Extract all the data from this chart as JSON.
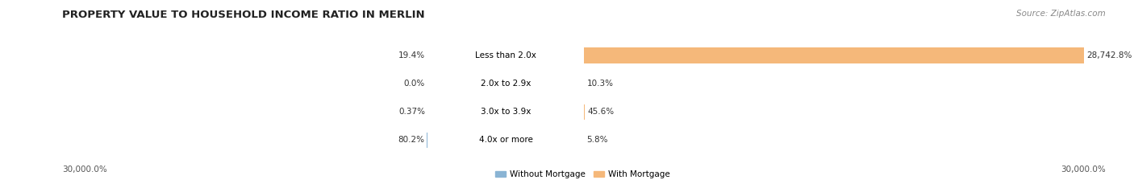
{
  "title": "PROPERTY VALUE TO HOUSEHOLD INCOME RATIO IN MERLIN",
  "source": "Source: ZipAtlas.com",
  "categories": [
    "Less than 2.0x",
    "2.0x to 2.9x",
    "3.0x to 3.9x",
    "4.0x or more"
  ],
  "without_mortgage": [
    19.4,
    0.0,
    0.37,
    80.2
  ],
  "with_mortgage": [
    28742.8,
    10.3,
    45.6,
    5.8
  ],
  "without_mortgage_labels": [
    "19.4%",
    "0.0%",
    "0.37%",
    "80.2%"
  ],
  "with_mortgage_labels": [
    "28,742.8%",
    "10.3%",
    "45.6%",
    "5.8%"
  ],
  "color_without": "#8ab4d4",
  "color_with": "#f5b87a",
  "row_bg_even": "#ebebeb",
  "row_bg_odd": "#f5f5f5",
  "xlim": 30000.0,
  "xlabel_left": "30,000.0%",
  "xlabel_right": "30,000.0%",
  "title_fontsize": 9.5,
  "label_fontsize": 7.5,
  "cat_fontsize": 7.5,
  "tick_fontsize": 7.5,
  "source_fontsize": 7.5,
  "bg_color": "#ffffff"
}
